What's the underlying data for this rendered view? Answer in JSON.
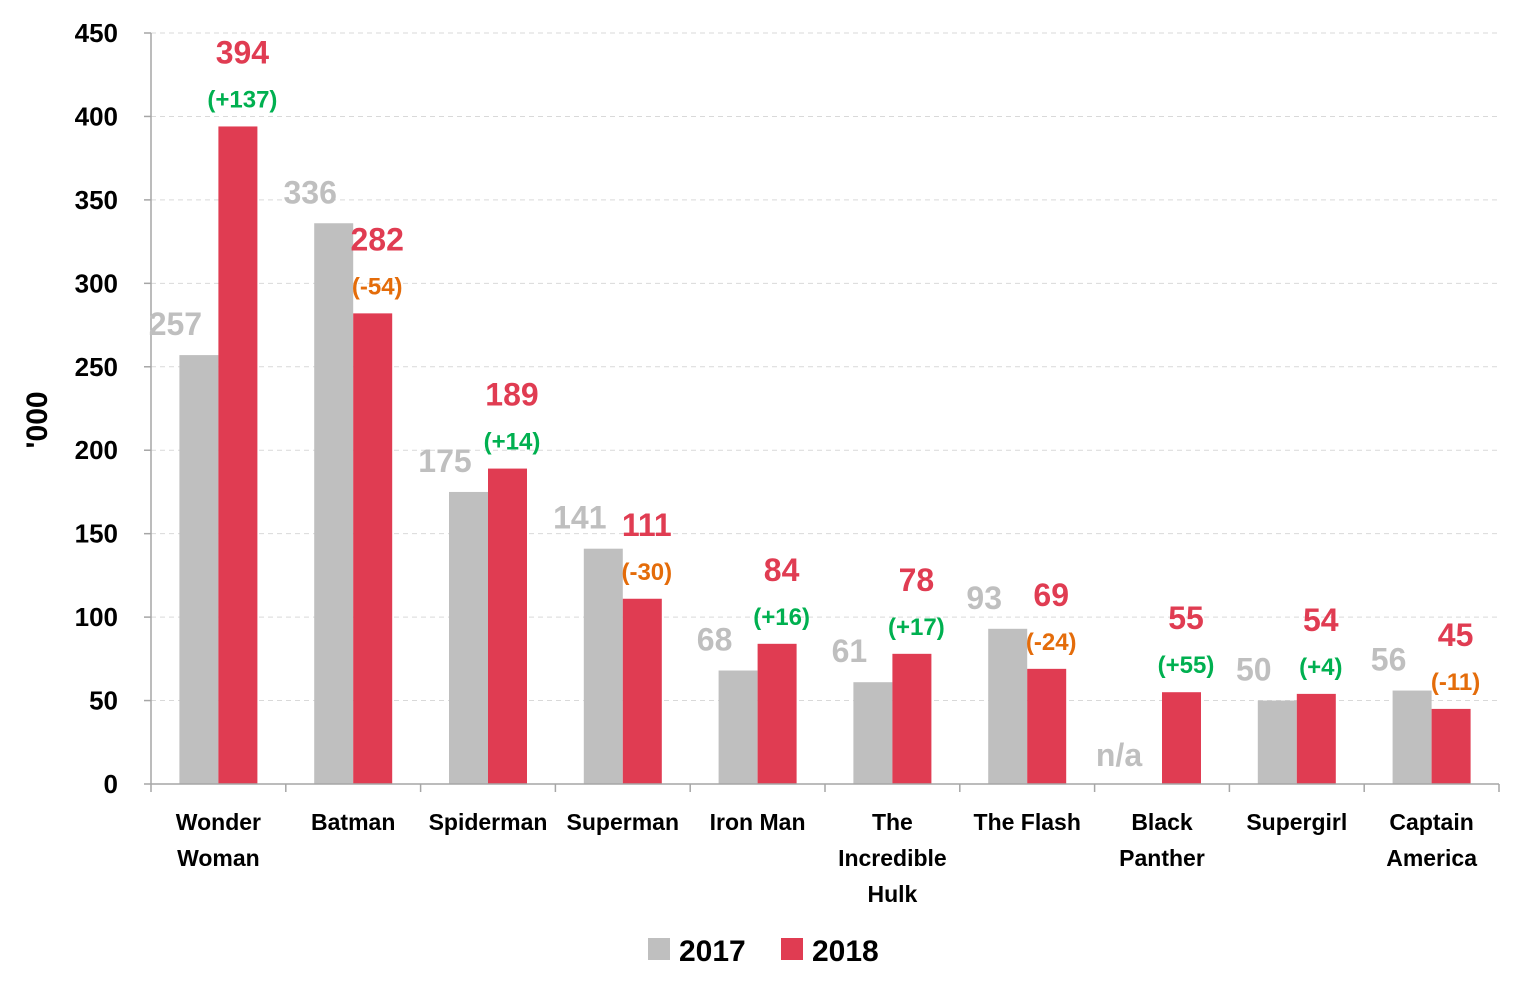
{
  "colors": {
    "2017": "#bfbfbf",
    "2018": "#e03c52",
    "positive": "#00b050",
    "negative": "#e46c0a",
    "grid": "#d9d9d9",
    "axis": "#a6a6a6"
  },
  "chart_data": {
    "type": "bar",
    "ylabel": "'000",
    "ylim": [
      0,
      450
    ],
    "yticks": [
      0,
      50,
      100,
      150,
      200,
      250,
      300,
      350,
      400,
      450
    ],
    "grid": true,
    "legend_position": "bottom",
    "categories": [
      [
        "Wonder",
        "Woman"
      ],
      [
        "Batman"
      ],
      [
        "Spiderman"
      ],
      [
        "Superman"
      ],
      [
        "Iron Man"
      ],
      [
        "The",
        "Incredible",
        "Hulk"
      ],
      [
        "The Flash"
      ],
      [
        "Black",
        "Panther"
      ],
      [
        "Supergirl"
      ],
      [
        "Captain",
        "America"
      ]
    ],
    "series": [
      {
        "name": "2017",
        "values": [
          257,
          336,
          175,
          141,
          68,
          61,
          93,
          null,
          50,
          56
        ],
        "labels": [
          "257",
          "336",
          "175",
          "141",
          "68",
          "61",
          "93",
          "n/a",
          "50",
          "56"
        ]
      },
      {
        "name": "2018",
        "values": [
          394,
          282,
          189,
          111,
          84,
          78,
          69,
          55,
          54,
          45
        ],
        "labels": [
          "394",
          "282",
          "189",
          "111",
          "84",
          "78",
          "69",
          "55",
          "54",
          "45"
        ]
      }
    ],
    "changes": [
      "(+137)",
      "(-54)",
      "(+14)",
      "(-30)",
      "(+16)",
      "(+17)",
      "(-24)",
      "(+55)",
      "(+4)",
      "(-11)"
    ]
  }
}
